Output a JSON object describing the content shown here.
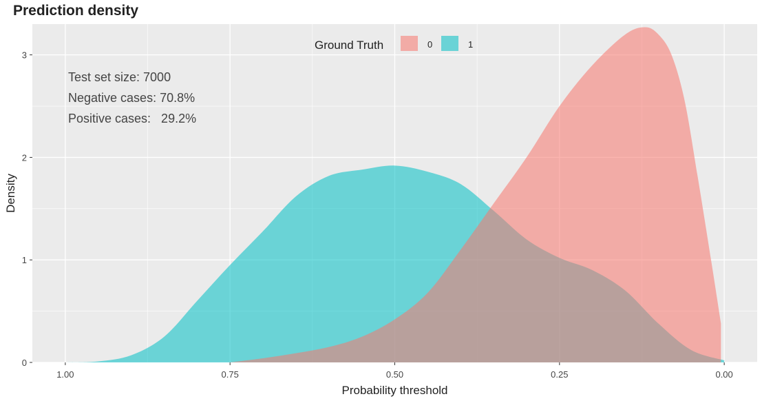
{
  "chart_data": {
    "type": "area",
    "title": "Prediction density",
    "xlabel": "Probability threshold",
    "ylabel": "Density",
    "x_reversed": true,
    "xlim": [
      1.0,
      0.0
    ],
    "ylim": [
      0,
      3.3
    ],
    "x_ticks": [
      "1.00",
      "0.75",
      "0.50",
      "0.25",
      "0.00"
    ],
    "x_tick_values": [
      1.0,
      0.75,
      0.5,
      0.25,
      0.0
    ],
    "y_ticks": [
      "0",
      "1",
      "2",
      "3"
    ],
    "y_tick_values": [
      0,
      1,
      2,
      3
    ],
    "grid": true,
    "legend": {
      "title": "Ground Truth",
      "placement": "top-center",
      "entries": [
        {
          "label": "0",
          "color": "#F8766D"
        },
        {
          "label": "1",
          "color": "#00BFC4"
        }
      ]
    },
    "annotations": [
      "Test set size: 7000",
      "Negative cases: 70.8%",
      "Positive cases:   29.2%"
    ],
    "series": [
      {
        "name": "0",
        "color": "#F8766D",
        "x": [
          0.75,
          0.7,
          0.65,
          0.6,
          0.55,
          0.5,
          0.45,
          0.4,
          0.35,
          0.3,
          0.25,
          0.2,
          0.15,
          0.12,
          0.1,
          0.08,
          0.06,
          0.04,
          0.02,
          0.005
        ],
        "y": [
          0.0,
          0.04,
          0.09,
          0.15,
          0.25,
          0.42,
          0.68,
          1.1,
          1.55,
          2.0,
          2.5,
          2.9,
          3.2,
          3.27,
          3.2,
          3.0,
          2.55,
          1.8,
          1.0,
          0.38
        ]
      },
      {
        "name": "1",
        "color": "#00BFC4",
        "x": [
          1.0,
          0.95,
          0.9,
          0.85,
          0.8,
          0.75,
          0.7,
          0.65,
          0.6,
          0.55,
          0.5,
          0.45,
          0.4,
          0.35,
          0.3,
          0.25,
          0.2,
          0.15,
          0.1,
          0.05,
          0.0
        ],
        "y": [
          0.0,
          0.01,
          0.07,
          0.25,
          0.6,
          0.95,
          1.28,
          1.62,
          1.82,
          1.88,
          1.92,
          1.86,
          1.74,
          1.48,
          1.2,
          1.02,
          0.9,
          0.7,
          0.38,
          0.12,
          0.02
        ]
      }
    ]
  }
}
